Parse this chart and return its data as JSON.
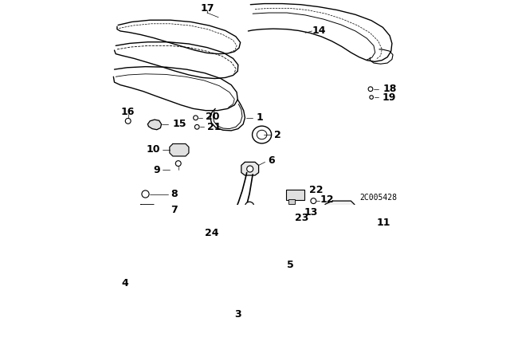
{
  "title": "",
  "background_color": "#ffffff",
  "diagram_id": "2C005428",
  "line_color": "#000000",
  "label_font_size": 9,
  "label_bold": true
}
